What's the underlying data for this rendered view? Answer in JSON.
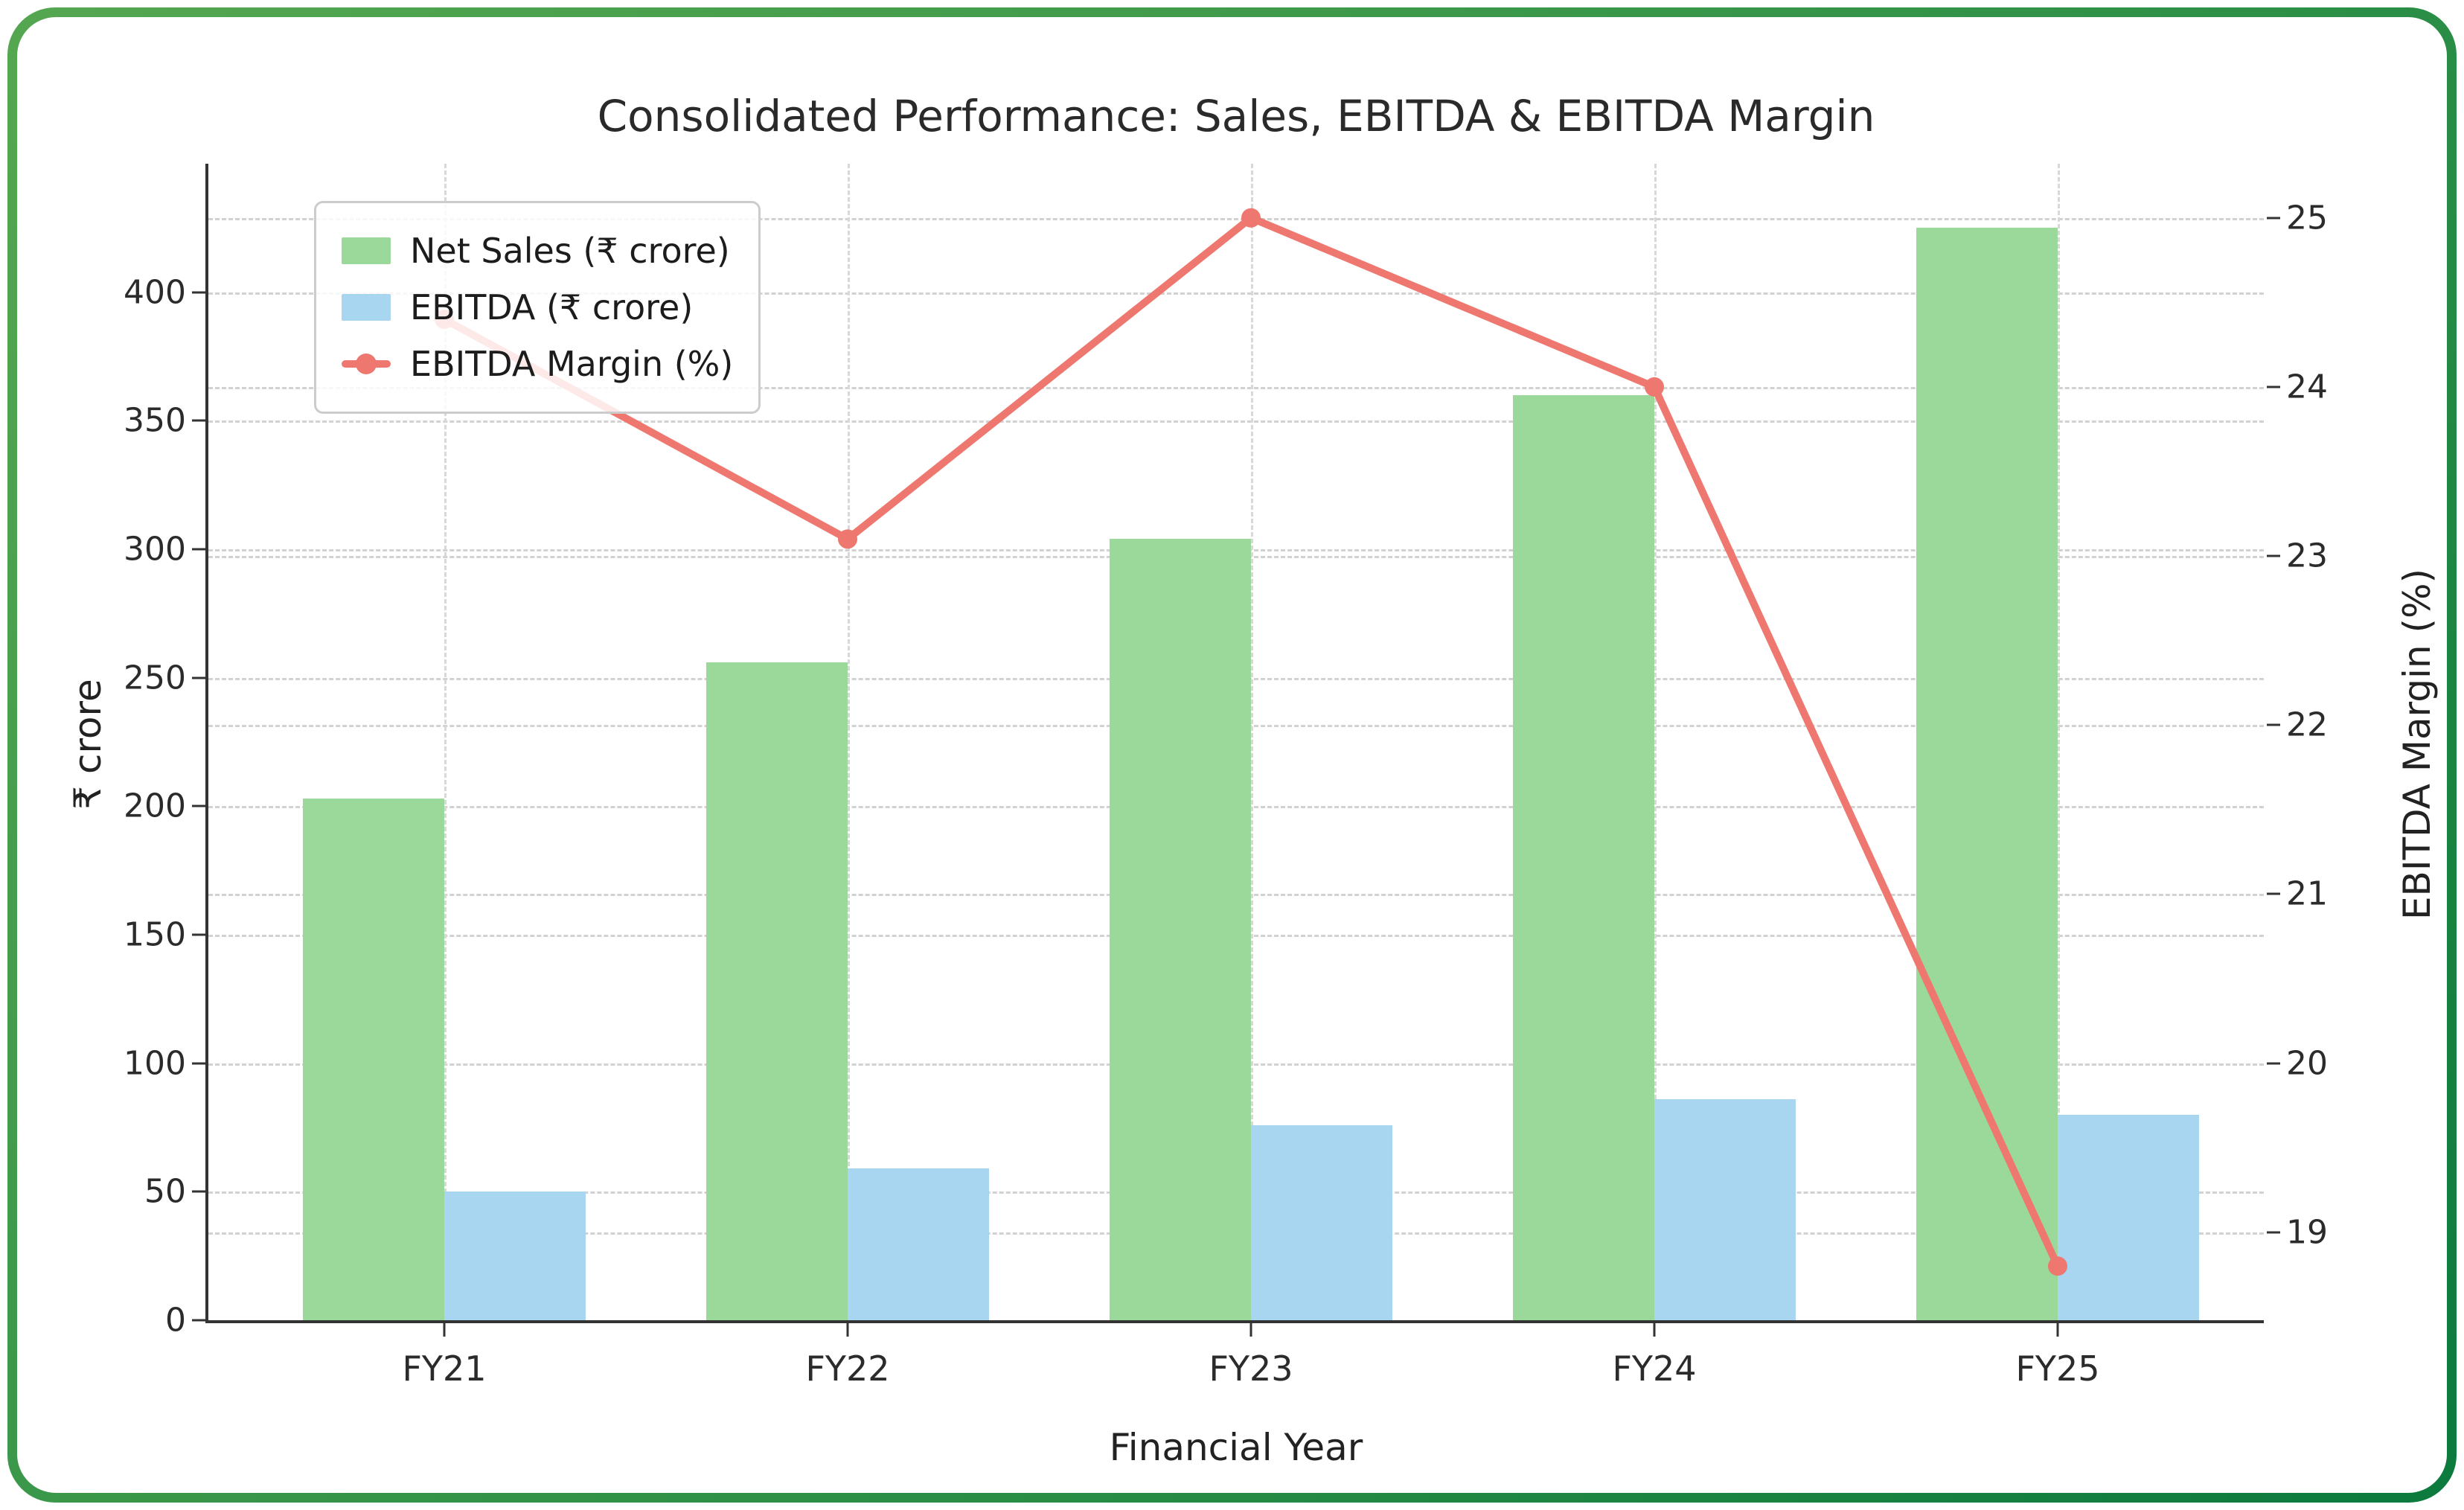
{
  "frame": {
    "border_gradient_start": "#55a750",
    "border_gradient_end": "#0c7a3e",
    "background": "#ffffff"
  },
  "chart_data": {
    "type": "bar+line combo",
    "title": "Consolidated Performance: Sales, EBITDA & EBITDA Margin",
    "xlabel": "Financial Year",
    "ylabel_left": "₹ crore",
    "ylabel_right": "EBITDA Margin (%)",
    "categories": [
      "FY21",
      "FY22",
      "FY23",
      "FY24",
      "FY25"
    ],
    "series": [
      {
        "name": "Net Sales (₹ crore)",
        "type": "bar",
        "axis": "left",
        "color": "#9ad999",
        "values": [
          203,
          256,
          304,
          360,
          425
        ]
      },
      {
        "name": "EBITDA (₹ crore)",
        "type": "bar",
        "axis": "left",
        "color": "#a8d5f0",
        "values": [
          50,
          59,
          76,
          86,
          80
        ]
      },
      {
        "name": "EBITDA Margin (%)",
        "type": "line",
        "axis": "right",
        "color": "#ee7870",
        "values": [
          24.4,
          23.1,
          25.0,
          24.0,
          18.8
        ]
      }
    ],
    "axes": {
      "left": {
        "ticks": [
          0,
          50,
          100,
          150,
          200,
          250,
          300,
          350,
          400
        ],
        "range": [
          0,
          450
        ]
      },
      "right": {
        "ticks": [
          19,
          20,
          21,
          22,
          23,
          24,
          25
        ],
        "range": [
          18.48,
          25.32
        ]
      }
    },
    "grid": true,
    "grid_color": "#d2d2d2",
    "spine_color": "#333333",
    "legend_position": "upper left"
  }
}
